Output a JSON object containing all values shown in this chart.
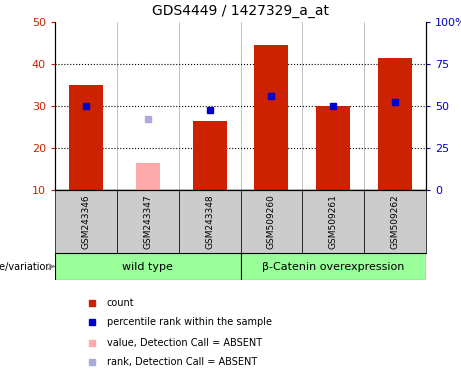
{
  "title": "GDS4449 / 1427329_a_at",
  "samples": [
    "GSM243346",
    "GSM243347",
    "GSM243348",
    "GSM509260",
    "GSM509261",
    "GSM509262"
  ],
  "count_values": [
    35,
    null,
    26.5,
    44.5,
    30,
    41.5
  ],
  "count_absent_values": [
    null,
    16.5,
    null,
    null,
    null,
    null
  ],
  "percentile_values": [
    30,
    null,
    29,
    32.5,
    30,
    31
  ],
  "percentile_absent_values": [
    null,
    27,
    null,
    null,
    null,
    null
  ],
  "ylim_left": [
    10,
    50
  ],
  "yticks_left": [
    10,
    20,
    30,
    40,
    50
  ],
  "yticklabels_left": [
    "10",
    "20",
    "30",
    "40",
    "50"
  ],
  "ylim_right": [
    0,
    100
  ],
  "yticks_right": [
    0,
    25,
    50,
    75,
    100
  ],
  "yticklabels_right": [
    "0",
    "25",
    "50",
    "75",
    "100%"
  ],
  "bar_width": 0.55,
  "color_count": "#cc2200",
  "color_count_absent": "#ffaaaa",
  "color_percentile": "#0000cc",
  "color_percentile_absent": "#aaaadd",
  "group1_label": "wild type",
  "group2_label": "β-Catenin overexpression",
  "group1_indices": [
    0,
    1,
    2
  ],
  "group2_indices": [
    3,
    4,
    5
  ],
  "group_bg": "#99ff99",
  "sample_bg": "#cccccc",
  "legend_items": [
    {
      "label": "count",
      "color": "#cc2200"
    },
    {
      "label": "percentile rank within the sample",
      "color": "#0000cc"
    },
    {
      "label": "value, Detection Call = ABSENT",
      "color": "#ffaaaa"
    },
    {
      "label": "rank, Detection Call = ABSENT",
      "color": "#aaaadd"
    }
  ],
  "genotype_label": "genotype/variation",
  "bar_bottom": 10,
  "plot_bg": "#ffffff"
}
